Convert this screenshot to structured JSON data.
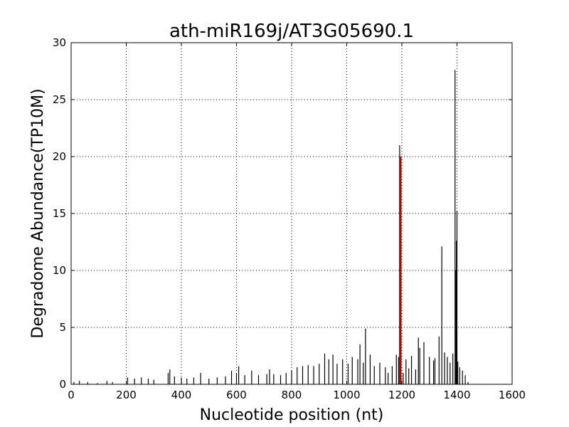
{
  "chart_data": {
    "type": "bar",
    "title": "ath-miR169j/AT3G05690.1",
    "xlabel": "Nucleotide position (nt)",
    "ylabel": "Degradome Abundance(TP10M)",
    "xlim": [
      0,
      1600
    ],
    "ylim": [
      0,
      30
    ],
    "xticks": [
      0,
      200,
      400,
      600,
      800,
      1000,
      1200,
      1400,
      1600
    ],
    "yticks": [
      0,
      5,
      10,
      15,
      20,
      25,
      30
    ],
    "grid": true,
    "series": [
      {
        "color": "#000000",
        "x": [
          10,
          30,
          60,
          95,
          130,
          150,
          205,
          230,
          255,
          280,
          300,
          352,
          358,
          375,
          400,
          420,
          445,
          470,
          500,
          530,
          560,
          582,
          600,
          608,
          630,
          655,
          680,
          710,
          720,
          735,
          760,
          780,
          800,
          820,
          840,
          860,
          880,
          900,
          920,
          935,
          950,
          965,
          985,
          1005,
          1020,
          1040,
          1048,
          1060,
          1068,
          1085,
          1100,
          1120,
          1140,
          1150,
          1165,
          1180,
          1188,
          1205,
          1215,
          1225,
          1235,
          1250,
          1260,
          1265,
          1280,
          1300,
          1315,
          1320,
          1335,
          1345,
          1355,
          1365,
          1375,
          1385,
          1393,
          1396,
          1398,
          1400,
          1403,
          1410,
          1420,
          1430,
          1440
        ],
        "values": [
          0.2,
          0.3,
          0.2,
          0.1,
          0.3,
          0.2,
          0.6,
          0.5,
          0.6,
          0.5,
          0.4,
          1.0,
          1.3,
          0.7,
          0.6,
          0.5,
          0.6,
          1.0,
          0.5,
          0.6,
          0.7,
          1.2,
          1.0,
          1.6,
          0.8,
          1.2,
          0.8,
          0.9,
          1.3,
          0.9,
          0.8,
          1.0,
          1.2,
          1.5,
          1.6,
          1.7,
          1.6,
          1.8,
          2.7,
          2.2,
          2.6,
          1.8,
          2.2,
          1.8,
          2.4,
          2.2,
          3.5,
          1.9,
          4.9,
          2.6,
          1.6,
          1.9,
          1.5,
          1.0,
          1.6,
          2.6,
          2.4,
          1.0,
          2.2,
          1.4,
          2.5,
          1.3,
          4.1,
          3.2,
          3.7,
          2.4,
          2.1,
          2.3,
          4.2,
          12.1,
          2.8,
          2.4,
          1.9,
          2.7,
          27.6,
          10.0,
          12.6,
          15.2,
          2.0,
          1.5,
          1.2,
          0.8,
          0.2
        ]
      },
      {
        "color": "#ff0000",
        "x": [
          1196
        ],
        "values": [
          20.0
        ]
      },
      {
        "color": "#000000",
        "x": [
          1192
        ],
        "values": [
          21.0
        ]
      }
    ]
  }
}
